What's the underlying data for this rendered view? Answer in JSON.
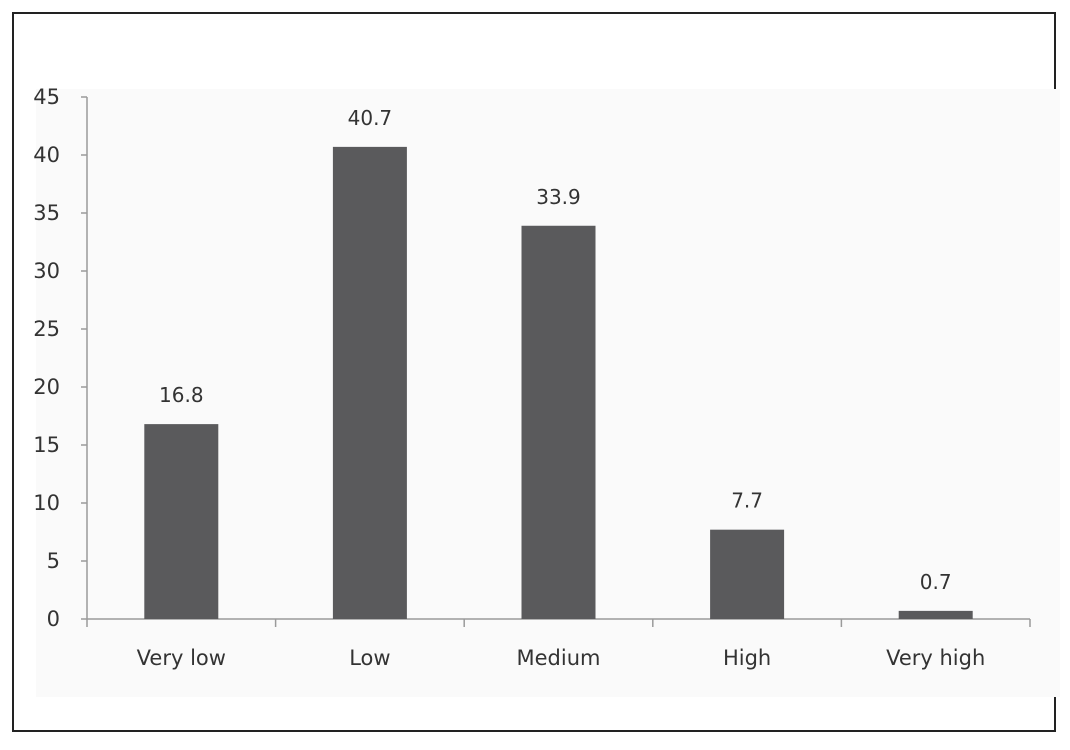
{
  "chart_data": {
    "type": "bar",
    "categories": [
      "Very low",
      "Low",
      "Medium",
      "High",
      "Very high"
    ],
    "values": [
      16.8,
      40.7,
      33.9,
      7.7,
      0.7
    ],
    "data_labels": [
      "16.8",
      "40.7",
      "33.9",
      "7.7",
      "0.7"
    ],
    "title": "",
    "xlabel": "",
    "ylabel": "",
    "ylim": [
      0,
      45
    ],
    "yticks": [
      0,
      5,
      10,
      15,
      20,
      25,
      30,
      35,
      40,
      45
    ],
    "grid": false,
    "legend": "none",
    "colors": {
      "bar": "#5a5a5c",
      "axis": "#9a9a9a",
      "text": "#333333"
    }
  }
}
